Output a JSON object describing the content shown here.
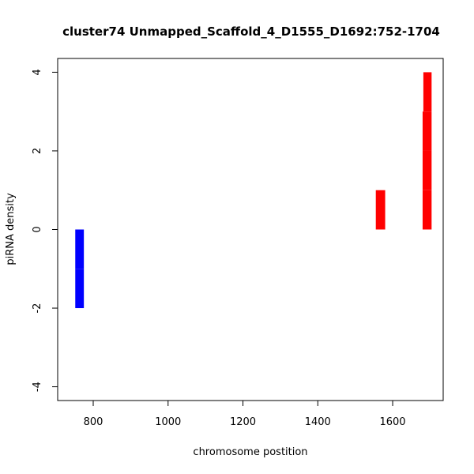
{
  "chart_data": {
    "type": "bar",
    "title": "cluster74   Unmapped_Scaffold_4_D1555_D1692:752-1704",
    "xlabel": "chromosome postition",
    "ylabel": "piRNA density",
    "xlim": [
      705,
      1735
    ],
    "ylim": [
      -4.35,
      4.35
    ],
    "xticks": [
      800,
      1000,
      1200,
      1400,
      1600
    ],
    "yticks": [
      -4,
      -2,
      0,
      2,
      4
    ],
    "grid": false,
    "legend": "none",
    "series": [
      {
        "color": "#0000ff",
        "bars": [
          {
            "x0": 752,
            "x1": 775,
            "y0": 0,
            "y1": -1
          },
          {
            "x0": 752,
            "x1": 775,
            "y0": -1,
            "y1": -2
          }
        ]
      },
      {
        "color": "#ff0000",
        "bars": [
          {
            "x0": 1555,
            "x1": 1580,
            "y0": 0,
            "y1": 1
          },
          {
            "x0": 1680,
            "x1": 1704,
            "y0": 0,
            "y1": 1
          },
          {
            "x0": 1680,
            "x1": 1704,
            "y0": 1,
            "y1": 2
          },
          {
            "x0": 1680,
            "x1": 1704,
            "y0": 2,
            "y1": 3
          },
          {
            "x0": 1682,
            "x1": 1704,
            "y0": 3,
            "y1": 4
          }
        ]
      }
    ]
  }
}
